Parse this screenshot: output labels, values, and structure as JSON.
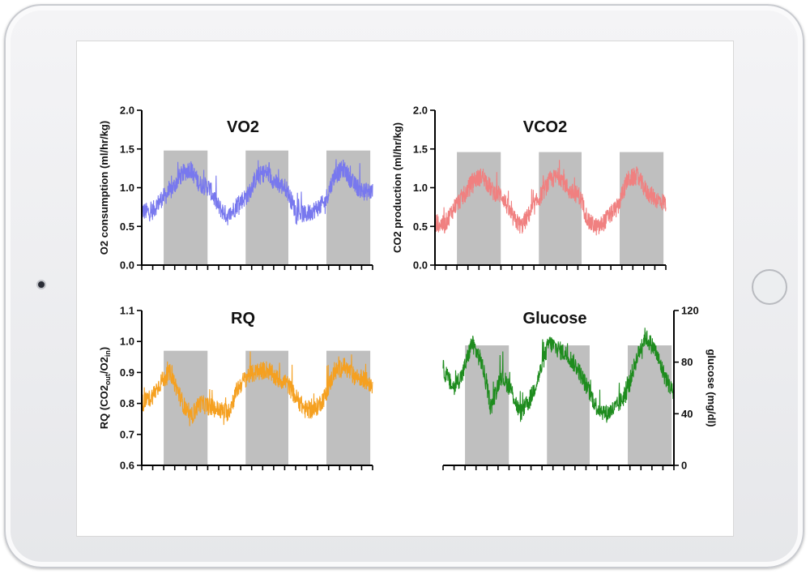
{
  "chart_data": [
    {
      "type": "line",
      "title": "VO2",
      "ylabel": "O2 consumption (ml/hr/kg)",
      "ylim": [
        0,
        2.0
      ],
      "yticks": [
        "0.0",
        "0.5",
        "1.0",
        "1.5",
        "2.0"
      ],
      "ytick_values": [
        0,
        0.5,
        1.0,
        1.5,
        2.0
      ],
      "y_axis_side": "left",
      "color": "#7878ee",
      "shaded_top": 1.48,
      "series": [
        {
          "x": [
            0,
            3,
            6,
            9,
            12,
            15,
            18,
            21,
            24,
            27,
            30,
            33,
            36,
            39,
            42,
            45,
            48,
            51,
            54,
            57,
            60,
            63,
            66,
            69,
            72
          ],
          "values": [
            0.7,
            0.68,
            0.85,
            0.95,
            1.15,
            1.25,
            1.05,
            1.0,
            0.75,
            0.62,
            0.8,
            0.9,
            1.15,
            1.2,
            1.05,
            1.0,
            0.7,
            0.65,
            0.72,
            0.8,
            1.15,
            1.25,
            1.05,
            0.95,
            0.95
          ]
        }
      ]
    },
    {
      "type": "line",
      "title": "VCO2",
      "ylabel": "CO2 production (ml/hr/kg)",
      "ylim": [
        0,
        2.0
      ],
      "yticks": [
        "0.0",
        "0.5",
        "1.0",
        "1.5",
        "2.0"
      ],
      "ytick_values": [
        0,
        0.5,
        1.0,
        1.5,
        2.0
      ],
      "y_axis_side": "left",
      "color": "#f08080",
      "shaded_top": 1.46,
      "series": [
        {
          "x": [
            0,
            3,
            6,
            9,
            12,
            15,
            18,
            21,
            24,
            27,
            30,
            33,
            36,
            39,
            42,
            45,
            48,
            51,
            54,
            57,
            60,
            63,
            66,
            69,
            72
          ],
          "values": [
            0.55,
            0.52,
            0.75,
            0.9,
            1.1,
            1.15,
            0.95,
            0.9,
            0.62,
            0.5,
            0.7,
            0.9,
            1.1,
            1.15,
            0.95,
            0.9,
            0.55,
            0.48,
            0.62,
            0.75,
            1.1,
            1.15,
            0.95,
            0.85,
            0.8
          ]
        }
      ]
    },
    {
      "type": "line",
      "title": "RQ",
      "ylabel": "RQ (CO2out/O2in)",
      "ylim": [
        0.6,
        1.1
      ],
      "yticks": [
        "0.6",
        "0.7",
        "0.8",
        "0.9",
        "1.0",
        "1.1"
      ],
      "ytick_values": [
        0.6,
        0.7,
        0.8,
        0.9,
        1.0,
        1.1
      ],
      "y_axis_side": "left",
      "color": "#f5a020",
      "shaded_top": 0.97,
      "series": [
        {
          "x": [
            0,
            3,
            6,
            9,
            12,
            15,
            18,
            21,
            24,
            27,
            30,
            33,
            36,
            39,
            42,
            45,
            48,
            51,
            54,
            57,
            60,
            63,
            66,
            69,
            72
          ],
          "values": [
            0.8,
            0.82,
            0.87,
            0.9,
            0.82,
            0.75,
            0.8,
            0.79,
            0.78,
            0.77,
            0.85,
            0.89,
            0.9,
            0.91,
            0.88,
            0.87,
            0.82,
            0.78,
            0.78,
            0.82,
            0.9,
            0.92,
            0.89,
            0.88,
            0.86
          ]
        }
      ]
    },
    {
      "type": "line",
      "title": "Glucose",
      "ylabel": "glucose (mg/dl)",
      "ylim": [
        0,
        120
      ],
      "yticks": [
        "0",
        "40",
        "80",
        "120"
      ],
      "ytick_values": [
        0,
        40,
        80,
        120
      ],
      "y_axis_side": "right",
      "color": "#1e8c1e",
      "shaded_top": 93,
      "series": [
        {
          "x": [
            0,
            3,
            6,
            9,
            12,
            15,
            18,
            21,
            24,
            27,
            30,
            33,
            36,
            39,
            42,
            45,
            48,
            51,
            54,
            57,
            60,
            63,
            66,
            69,
            72
          ],
          "values": [
            75,
            60,
            70,
            95,
            80,
            45,
            70,
            60,
            40,
            50,
            70,
            95,
            90,
            85,
            75,
            60,
            45,
            40,
            45,
            55,
            80,
            100,
            90,
            70,
            55
          ]
        }
      ]
    }
  ]
}
